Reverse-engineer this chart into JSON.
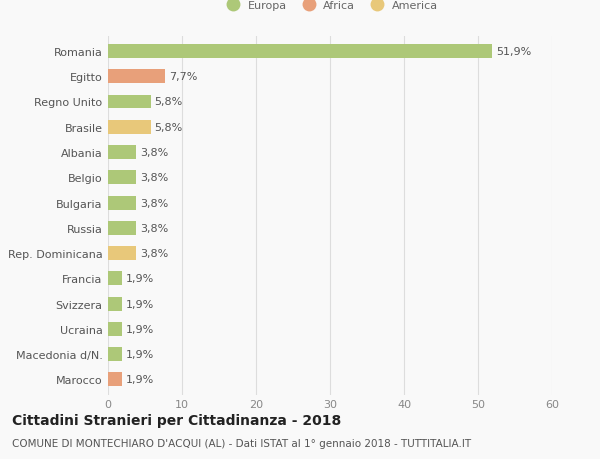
{
  "countries": [
    "Romania",
    "Egitto",
    "Regno Unito",
    "Brasile",
    "Albania",
    "Belgio",
    "Bulgaria",
    "Russia",
    "Rep. Dominicana",
    "Francia",
    "Svizzera",
    "Ucraina",
    "Macedonia d/N.",
    "Marocco"
  ],
  "values": [
    51.9,
    7.7,
    5.8,
    5.8,
    3.8,
    3.8,
    3.8,
    3.8,
    3.8,
    1.9,
    1.9,
    1.9,
    1.9,
    1.9
  ],
  "labels": [
    "51,9%",
    "7,7%",
    "5,8%",
    "5,8%",
    "3,8%",
    "3,8%",
    "3,8%",
    "3,8%",
    "3,8%",
    "1,9%",
    "1,9%",
    "1,9%",
    "1,9%",
    "1,9%"
  ],
  "continents": [
    "Europa",
    "Africa",
    "Europa",
    "America",
    "Europa",
    "Europa",
    "Europa",
    "Europa",
    "America",
    "Europa",
    "Europa",
    "Europa",
    "Europa",
    "Africa"
  ],
  "colors": {
    "Europa": "#adc878",
    "Africa": "#e8a07a",
    "America": "#e8c87a"
  },
  "xlim": [
    0,
    60
  ],
  "xticks": [
    0,
    10,
    20,
    30,
    40,
    50,
    60
  ],
  "title": "Cittadini Stranieri per Cittadinanza - 2018",
  "subtitle": "COMUNE DI MONTECHIARO D'ACQUI (AL) - Dati ISTAT al 1° gennaio 2018 - TUTTITALIA.IT",
  "background_color": "#f9f9f9",
  "grid_color": "#dddddd",
  "bar_height": 0.55,
  "label_fontsize": 8,
  "tick_fontsize": 8,
  "title_fontsize": 10,
  "subtitle_fontsize": 7.5,
  "legend_labels": [
    "Europa",
    "Africa",
    "America"
  ],
  "bar_label_color": "#555555",
  "ytick_color": "#555555",
  "xtick_color": "#888888"
}
